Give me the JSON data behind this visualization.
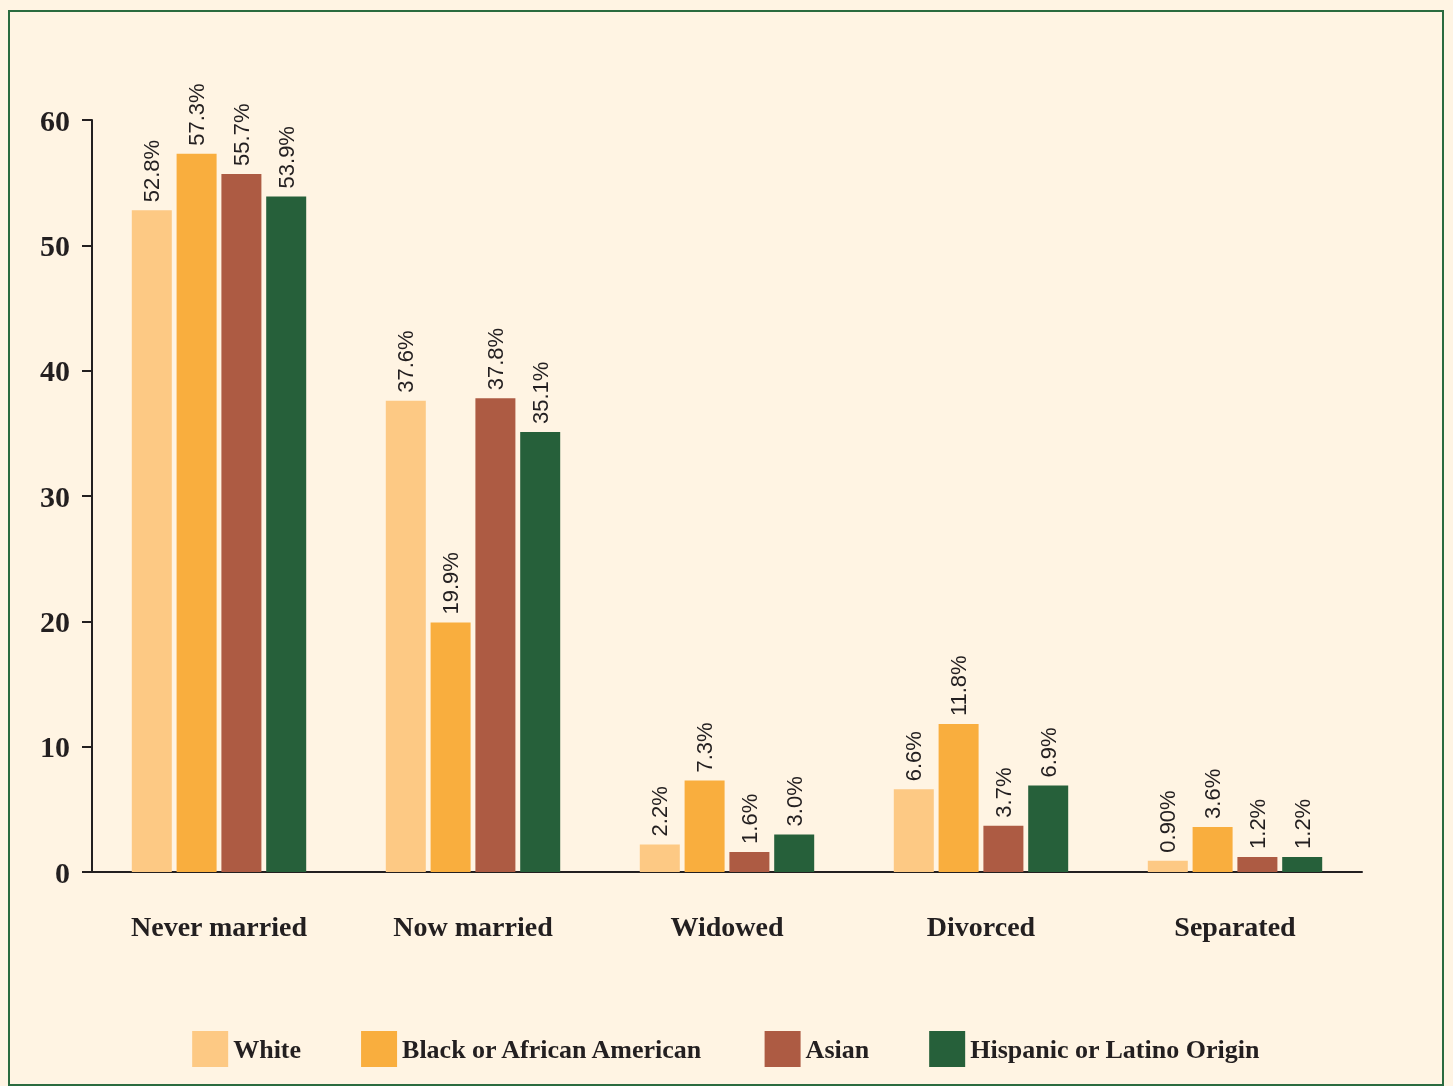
{
  "chart_data": {
    "type": "bar",
    "categories": [
      "Never married",
      "Now married",
      "Widowed",
      "Divorced",
      "Separated"
    ],
    "series": [
      {
        "name": "White",
        "color": "#fdc984",
        "values": [
          52.8,
          37.6,
          2.2,
          6.6,
          0.9
        ],
        "value_labels": [
          "52.8%",
          "37.6%",
          "2.2%",
          "6.6%",
          "0.90%"
        ]
      },
      {
        "name": "Black or African American",
        "color": "#f9ae3e",
        "values": [
          57.3,
          19.9,
          7.3,
          11.8,
          3.6
        ],
        "value_labels": [
          "57.3%",
          "19.9%",
          "7.3%",
          "11.8%",
          "3.6%"
        ]
      },
      {
        "name": "Asian",
        "color": "#ad5b43",
        "values": [
          55.7,
          37.8,
          1.6,
          3.7,
          1.2
        ],
        "value_labels": [
          "55.7%",
          "37.8%",
          "1.6%",
          "3.7%",
          "1.2%"
        ]
      },
      {
        "name": "Hispanic or Latino Origin",
        "color": "#26603a",
        "values": [
          53.9,
          35.1,
          3.0,
          6.9,
          1.2
        ],
        "value_labels": [
          "53.9%",
          "35.1%",
          "3.0%",
          "6.9%",
          "1.2%"
        ]
      }
    ],
    "ylim": [
      0,
      60
    ],
    "yticks": [
      0,
      10,
      20,
      30,
      40,
      50,
      60
    ],
    "grid": false,
    "legend": "bottom"
  }
}
